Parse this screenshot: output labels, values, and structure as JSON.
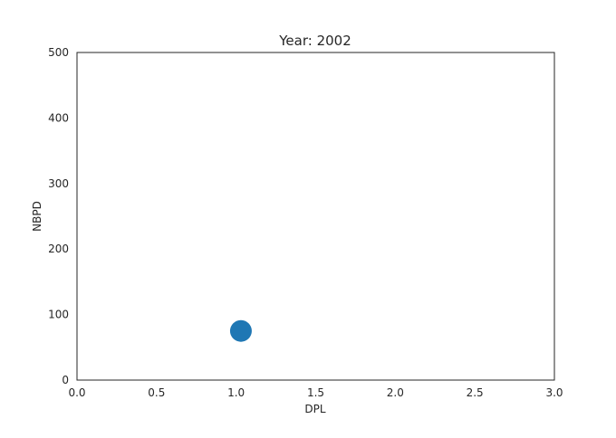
{
  "chart_data": {
    "type": "scatter",
    "title": "Year: 2002",
    "xlabel": "DPL",
    "ylabel": "NBPD",
    "xlim": [
      0,
      3
    ],
    "ylim": [
      0,
      500
    ],
    "xticks": [
      0.0,
      0.5,
      1.0,
      1.5,
      2.0,
      2.5,
      3.0
    ],
    "xtick_labels": [
      "0.0",
      "0.5",
      "1.0",
      "1.5",
      "2.0",
      "2.5",
      "3.0"
    ],
    "yticks": [
      0,
      100,
      200,
      300,
      400,
      500
    ],
    "ytick_labels": [
      "0",
      "100",
      "200",
      "300",
      "400",
      "500"
    ],
    "grid": false,
    "series": [
      {
        "color": "#1f77b4",
        "points": [
          {
            "x": 1.03,
            "y": 75
          }
        ]
      }
    ]
  }
}
